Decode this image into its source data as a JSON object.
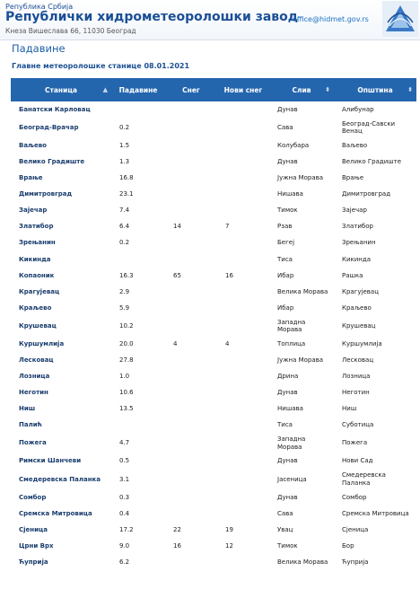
{
  "header": {
    "country": "Република Србија",
    "title": "Републички хидрометеоролошки завод",
    "address": "Кнеза Вишеслава 66, 11030 Београд",
    "email": "office@hidmet.gov.rs",
    "logo_icon": "rhmz-logo-icon"
  },
  "page": {
    "title": "Падавине",
    "subtitle": "Главне метеоролошке станице 08.01.2021"
  },
  "table": {
    "columns": [
      "Станица",
      "Падавине",
      "Снег",
      "Нови снег",
      "Слив",
      "Општина"
    ],
    "rows": [
      {
        "station": "Банатски Карловац",
        "precip": "",
        "snow": "",
        "new_snow": "",
        "basin": "Дунав",
        "municipality": "Алибунар"
      },
      {
        "station": "Београд-Врачар",
        "precip": "0.2",
        "snow": "",
        "new_snow": "",
        "basin": "Сава",
        "municipality": "Београд-Савски Венац"
      },
      {
        "station": "Ваљево",
        "precip": "1.5",
        "snow": "",
        "new_snow": "",
        "basin": "Колубара",
        "municipality": "Ваљево"
      },
      {
        "station": "Велико Градиште",
        "precip": "1.3",
        "snow": "",
        "new_snow": "",
        "basin": "Дунав",
        "municipality": "Велико Градиште"
      },
      {
        "station": "Врање",
        "precip": "16.8",
        "snow": "",
        "new_snow": "",
        "basin": "Јужна Морава",
        "municipality": "Врање"
      },
      {
        "station": "Димитровград",
        "precip": "23.1",
        "snow": "",
        "new_snow": "",
        "basin": "Нишава",
        "municipality": "Димитровград"
      },
      {
        "station": "Зајечар",
        "precip": "7.4",
        "snow": "",
        "new_snow": "",
        "basin": "Тимок",
        "municipality": "Зајечар"
      },
      {
        "station": "Златибор",
        "precip": "6.4",
        "snow": "14",
        "new_snow": "7",
        "basin": "Рзав",
        "municipality": "Златибор"
      },
      {
        "station": "Зрењанин",
        "precip": "0.2",
        "snow": "",
        "new_snow": "",
        "basin": "Бегеј",
        "municipality": "Зрењанин"
      },
      {
        "station": "Кикинда",
        "precip": "",
        "snow": "",
        "new_snow": "",
        "basin": "Тиса",
        "municipality": "Кикинда"
      },
      {
        "station": "Копаоник",
        "precip": "16.3",
        "snow": "65",
        "new_snow": "16",
        "basin": "Ибар",
        "municipality": "Рашка"
      },
      {
        "station": "Крагујевац",
        "precip": "2.9",
        "snow": "",
        "new_snow": "",
        "basin": "Велика Морава",
        "municipality": "Крагујевац"
      },
      {
        "station": "Краљево",
        "precip": "5.9",
        "snow": "",
        "new_snow": "",
        "basin": "Ибар",
        "municipality": "Краљево"
      },
      {
        "station": "Крушевац",
        "precip": "10.2",
        "snow": "",
        "new_snow": "",
        "basin": "Западна Морава",
        "municipality": "Крушевац"
      },
      {
        "station": "Куршумлија",
        "precip": "20.0",
        "snow": "4",
        "new_snow": "4",
        "basin": "Топлица",
        "municipality": "Куршумлија"
      },
      {
        "station": "Лесковац",
        "precip": "27.8",
        "snow": "",
        "new_snow": "",
        "basin": "Јужна Морава",
        "municipality": "Лесковац"
      },
      {
        "station": "Лозница",
        "precip": "1.0",
        "snow": "",
        "new_snow": "",
        "basin": "Дрина",
        "municipality": "Лозница"
      },
      {
        "station": "Неготин",
        "precip": "10.6",
        "snow": "",
        "new_snow": "",
        "basin": "Дунав",
        "municipality": "Неготин"
      },
      {
        "station": "Ниш",
        "precip": "13.5",
        "snow": "",
        "new_snow": "",
        "basin": "Нишава",
        "municipality": "Ниш"
      },
      {
        "station": "Палић",
        "precip": "",
        "snow": "",
        "new_snow": "",
        "basin": "Тиса",
        "municipality": "Суботица"
      },
      {
        "station": "Пожега",
        "precip": "4.7",
        "snow": "",
        "new_snow": "",
        "basin": "Западна Морава",
        "municipality": "Пожега"
      },
      {
        "station": "Римски Шанчеви",
        "precip": "0.5",
        "snow": "",
        "new_snow": "",
        "basin": "Дунав",
        "municipality": "Нови Сад"
      },
      {
        "station": "Смедеревска Паланка",
        "precip": "3.1",
        "snow": "",
        "new_snow": "",
        "basin": "Јасеница",
        "municipality": "Смедеревска Паланка"
      },
      {
        "station": "Сомбор",
        "precip": "0.3",
        "snow": "",
        "new_snow": "",
        "basin": "Дунав",
        "municipality": "Сомбор"
      },
      {
        "station": "Сремска Митровица",
        "precip": "0.4",
        "snow": "",
        "new_snow": "",
        "basin": "Сава",
        "municipality": "Сремска Митровица"
      },
      {
        "station": "Сјеница",
        "precip": "17.2",
        "snow": "22",
        "new_snow": "19",
        "basin": "Увац",
        "municipality": "Сјеница"
      },
      {
        "station": "Црни Врх",
        "precip": "9.0",
        "snow": "16",
        "new_snow": "12",
        "basin": "Тимок",
        "municipality": "Бор"
      },
      {
        "station": "Ћуприја",
        "precip": "6.2",
        "snow": "",
        "new_snow": "",
        "basin": "Велика Морава",
        "municipality": "Ћуприја"
      }
    ]
  },
  "colors": {
    "header_text": "#1a4f95",
    "table_header_bg": "#2466ae",
    "station_text": "#1a3d6e"
  }
}
